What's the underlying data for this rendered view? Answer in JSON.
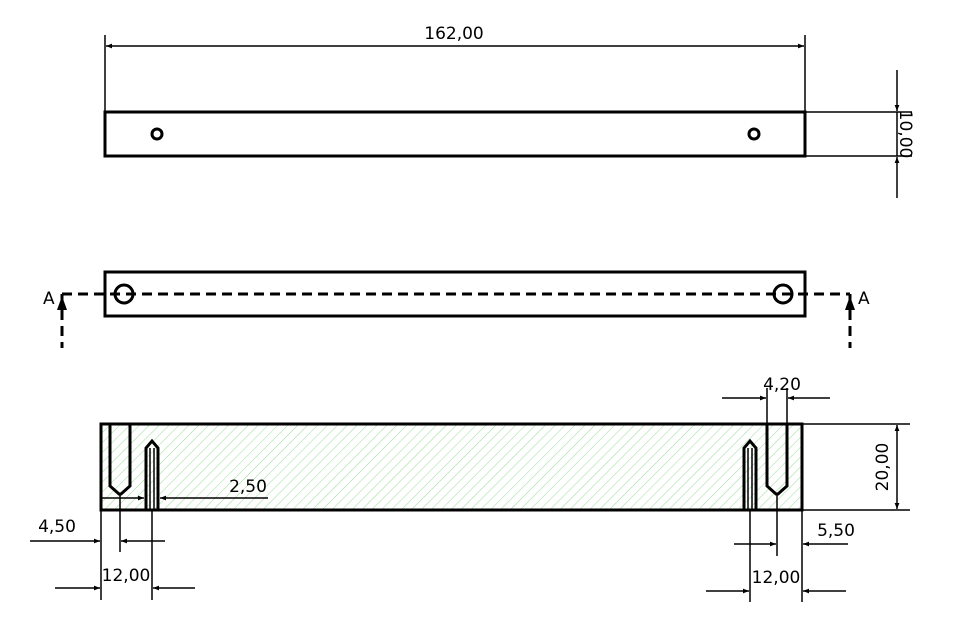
{
  "drawing": {
    "dimensions": {
      "top_length": "162,00",
      "top_height": "10,00",
      "hole_top_width": "4,20",
      "section_height": "20,00",
      "slot_offset": "2,50",
      "left_edge_offset": "4,50",
      "left_spacing": "12,00",
      "right_edge_offset": "5,50",
      "right_spacing": "12,00"
    },
    "section_labels": {
      "left": "A",
      "right": "A"
    },
    "colors": {
      "line": "#000000",
      "hatch": "#7fd37f"
    }
  }
}
